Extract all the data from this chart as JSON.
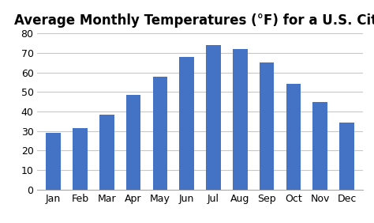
{
  "title": "Average Monthly Temperatures (°F) for a U.S. City",
  "months": [
    "Jan",
    "Feb",
    "Mar",
    "Apr",
    "May",
    "Jun",
    "Jul",
    "Aug",
    "Sep",
    "Oct",
    "Nov",
    "Dec"
  ],
  "values": [
    29,
    31.5,
    38.5,
    48.5,
    58,
    68,
    74,
    72,
    65,
    54,
    45,
    34.5
  ],
  "bar_color": "#4472C4",
  "ylim": [
    0,
    80
  ],
  "yticks": [
    0,
    10,
    20,
    30,
    40,
    50,
    60,
    70,
    80
  ],
  "background_color": "#ffffff",
  "grid_color": "#c8c8c8",
  "title_fontsize": 12,
  "tick_fontsize": 9,
  "bar_width": 0.55
}
